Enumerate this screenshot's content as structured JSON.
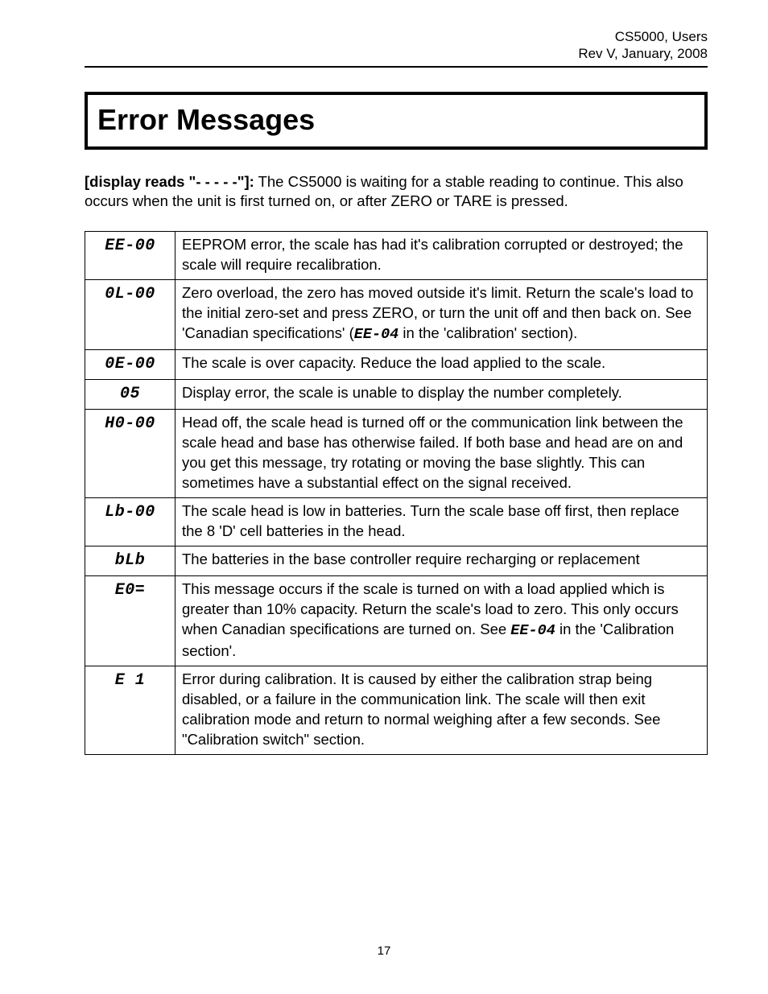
{
  "header": {
    "line1": "CS5000, Users",
    "line2": "Rev V, January, 2008"
  },
  "title": "Error Messages",
  "intro": {
    "lead": "[display reads \"- - - - -\"]:",
    "body": "  The CS5000 is waiting for a stable reading to continue.  This also occurs when the unit is first turned on, or after ZERO or TARE is pressed."
  },
  "errors": [
    {
      "code": "EE-00",
      "desc": "EEPROM error, the scale has had it's calibration corrupted or destroyed; the scale will require recalibration."
    },
    {
      "code": "0L-00",
      "desc_pre": "Zero overload, the zero has moved outside it's limit. Return the scale's load to the initial zero-set and press ZERO, or turn the unit off and then back on. See 'Canadian specifications' (",
      "inline": "EE-04",
      "desc_post": " in the 'calibration' section)."
    },
    {
      "code": "0E-00",
      "desc": "The scale is over capacity. Reduce the load applied to the scale."
    },
    {
      "code": "05",
      "desc": "Display error, the scale is unable to display the number completely."
    },
    {
      "code": "H0-00",
      "desc": "Head off, the scale head is turned off or the communication link between the scale head and base has otherwise failed. If both base and head are on and you get this message, try rotating or moving the base slightly. This can sometimes have a substantial effect on the signal received."
    },
    {
      "code": "Lb-00",
      "desc": "The scale head is low in batteries. Turn the scale base off first, then replace the 8 'D' cell batteries in the head."
    },
    {
      "code": "bLb",
      "desc": "The batteries in the base controller require recharging or replacement"
    },
    {
      "code": "E0=",
      "desc_pre": "This message occurs if the scale is turned on with a load applied which is greater than   10% capacity.  Return the scale's load to zero.  This only occurs when Canadian specifications are turned on.  See ",
      "inline": "EE-04",
      "desc_post": " in the 'Calibration section'."
    },
    {
      "code": "E 1",
      "desc": "Error during calibration.  It is caused by either the calibration strap being disabled, or a failure in the communication link.  The scale will then exit calibration mode and return to normal weighing after a few seconds.  See \"Calibration switch\" section."
    }
  ],
  "page_number": "17"
}
